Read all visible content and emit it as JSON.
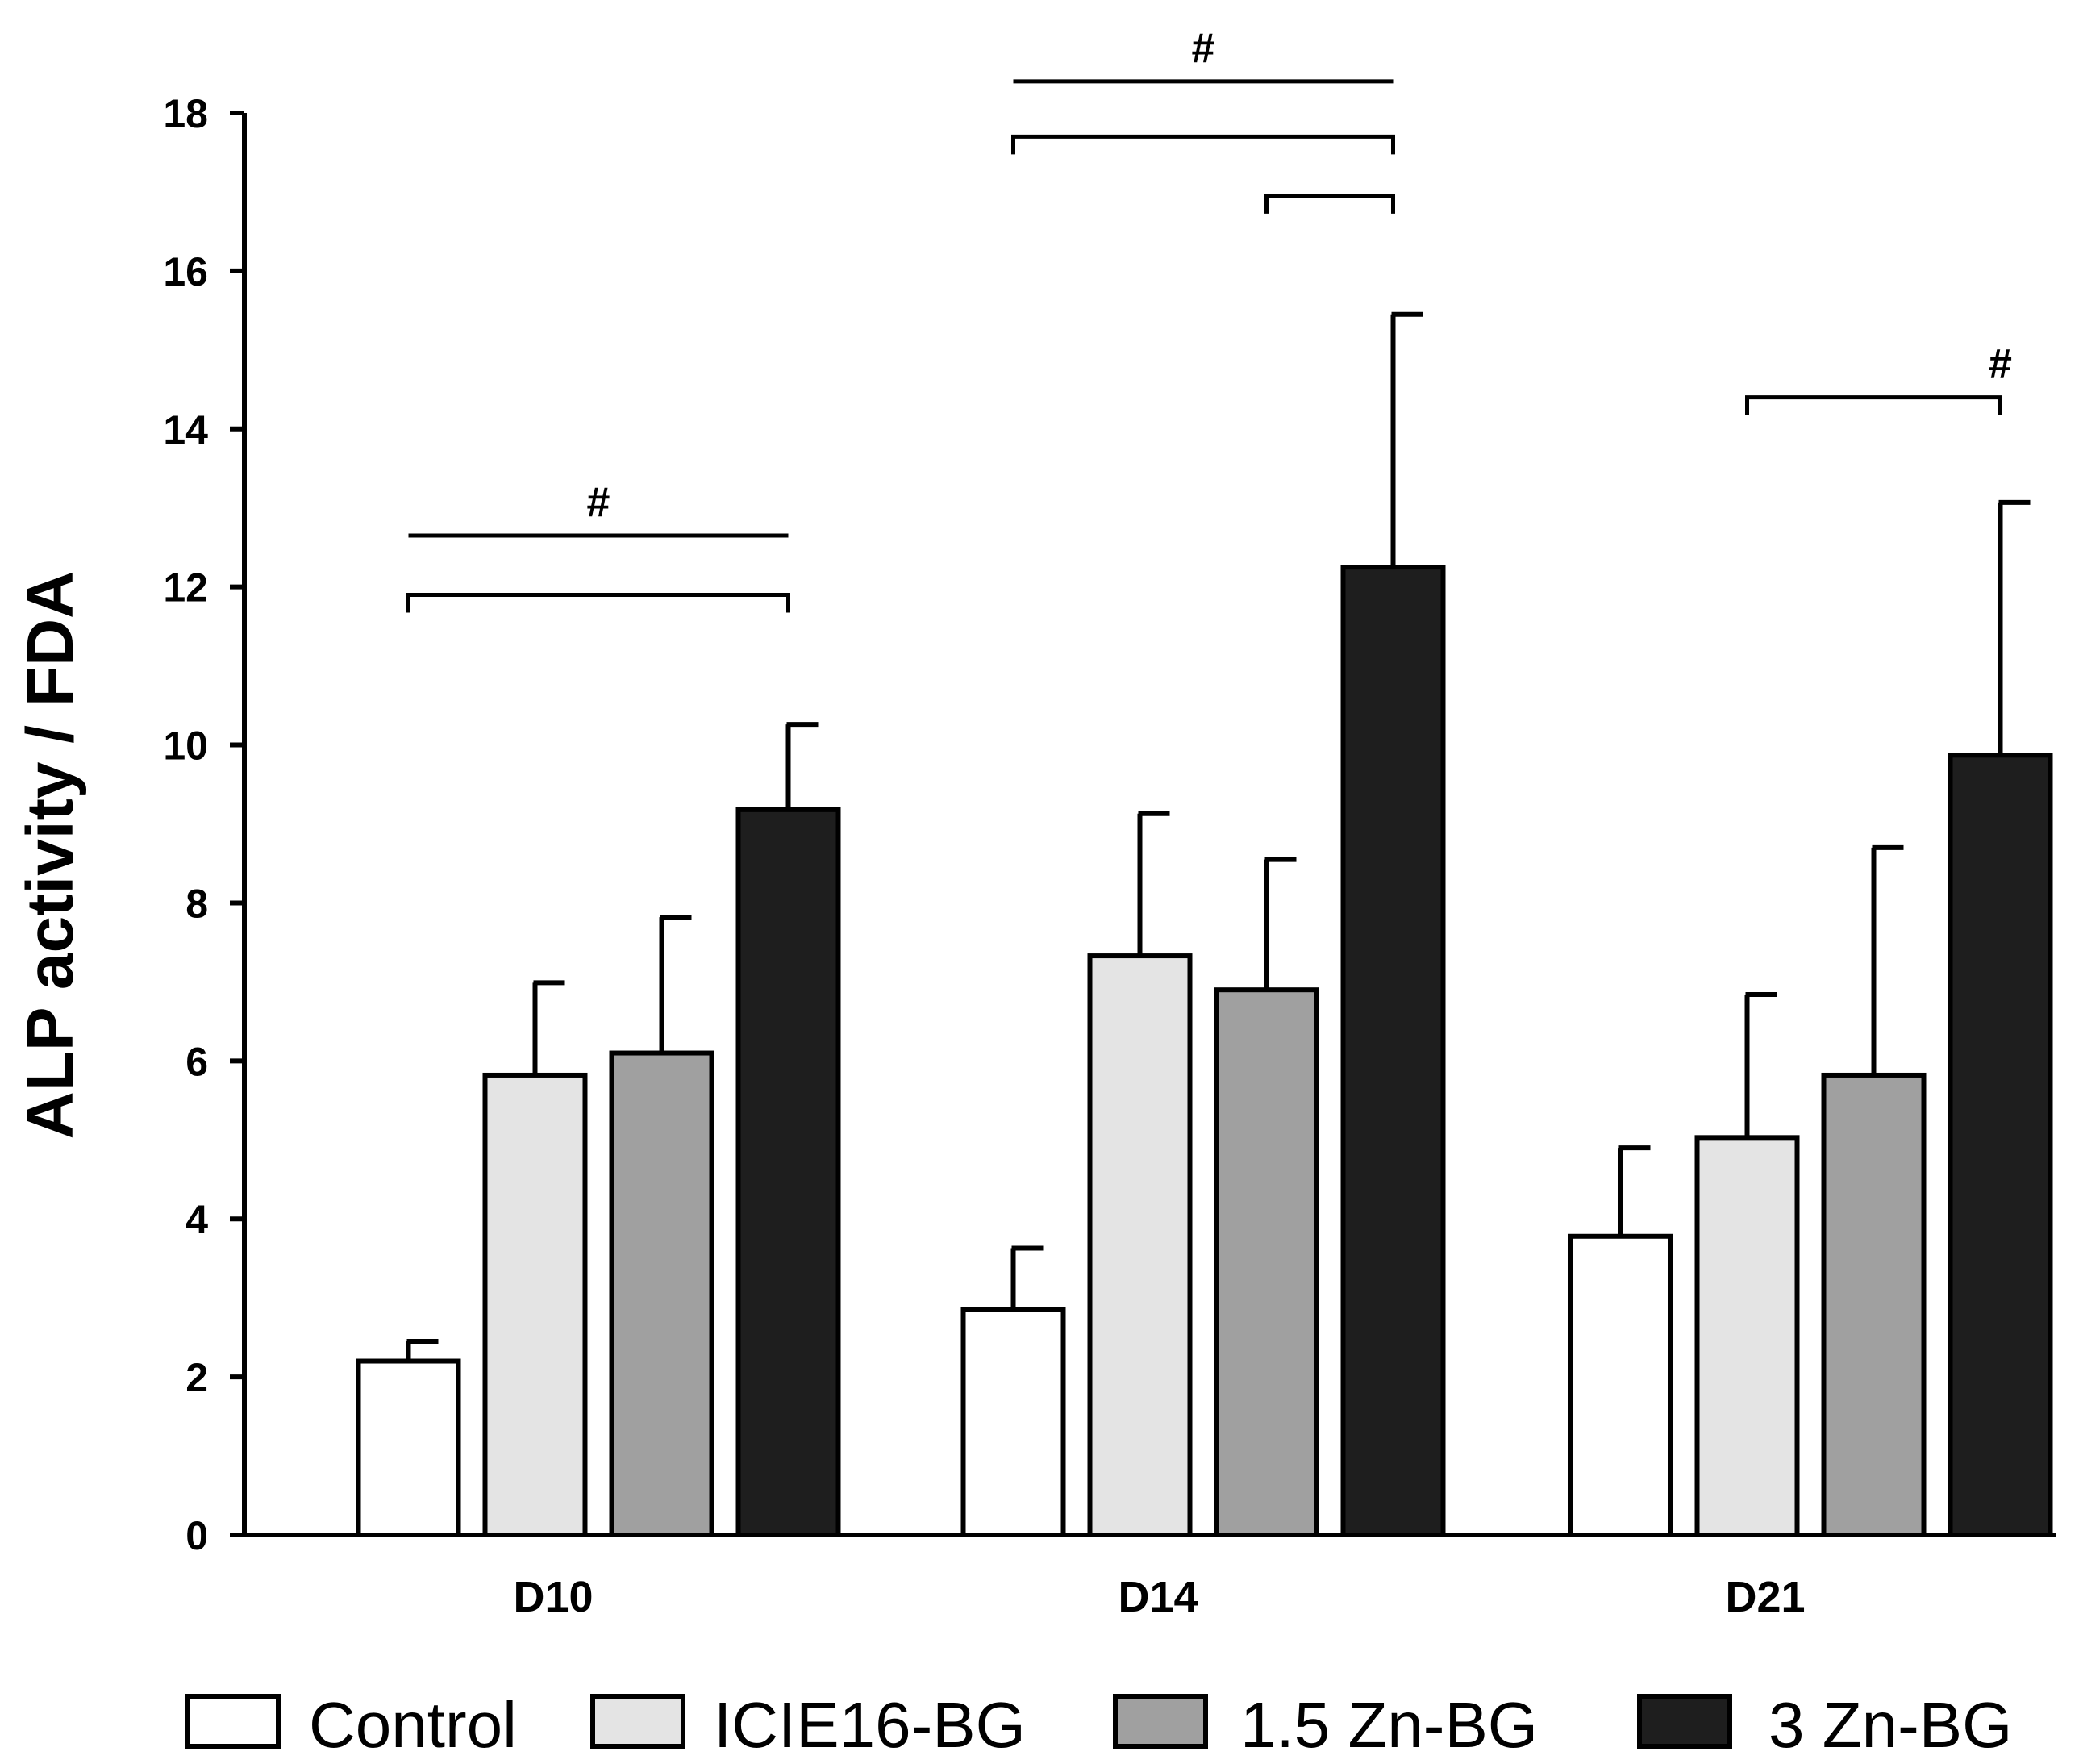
{
  "chart_data": {
    "type": "bar",
    "title": "",
    "xlabel": "",
    "ylabel": "ALP activity / FDA",
    "ylim": [
      0,
      18
    ],
    "yticks": [
      0,
      2,
      4,
      6,
      8,
      10,
      12,
      14,
      16,
      18
    ],
    "categories": [
      "D10",
      "D14",
      "D21"
    ],
    "series": [
      {
        "name": "Control",
        "color": "#ffffff",
        "values": [
          2.2,
          2.85,
          3.78
        ],
        "errors": [
          0.25,
          0.78,
          1.12
        ]
      },
      {
        "name": "ICIE16-BG",
        "color": "#e4e4e4",
        "values": [
          5.82,
          7.33,
          5.03
        ],
        "errors": [
          1.17,
          1.8,
          1.81
        ]
      },
      {
        "name": "1.5 Zn-BG",
        "color": "#a0a0a0",
        "values": [
          6.1,
          6.9,
          5.82
        ],
        "errors": [
          1.72,
          1.65,
          2.88
        ]
      },
      {
        "name": "3 Zn-BG",
        "color": "#1e1e1e",
        "values": [
          9.18,
          12.25,
          9.87
        ],
        "errors": [
          1.08,
          3.2,
          3.2
        ]
      }
    ],
    "legend_position": "bottom",
    "significance": [
      {
        "category": "D10",
        "symbol": "#",
        "brackets": [
          {
            "from": 0,
            "to": 3,
            "style": "line",
            "level": 12.65
          },
          {
            "from": 0,
            "to": 3,
            "style": "bracket",
            "level": 11.9
          }
        ]
      },
      {
        "category": "D14",
        "symbol": "#",
        "brackets": [
          {
            "from": 0,
            "to": 3,
            "style": "line",
            "level": 18.4
          },
          {
            "from": 0,
            "to": 3,
            "style": "bracket",
            "level": 17.7
          },
          {
            "from": 2,
            "to": 3,
            "style": "bracket",
            "level": 16.95
          }
        ]
      },
      {
        "category": "D21",
        "symbol": "#",
        "brackets": [
          {
            "from": 1,
            "to": 3,
            "style": "bracket",
            "level": 14.4
          }
        ]
      }
    ]
  }
}
